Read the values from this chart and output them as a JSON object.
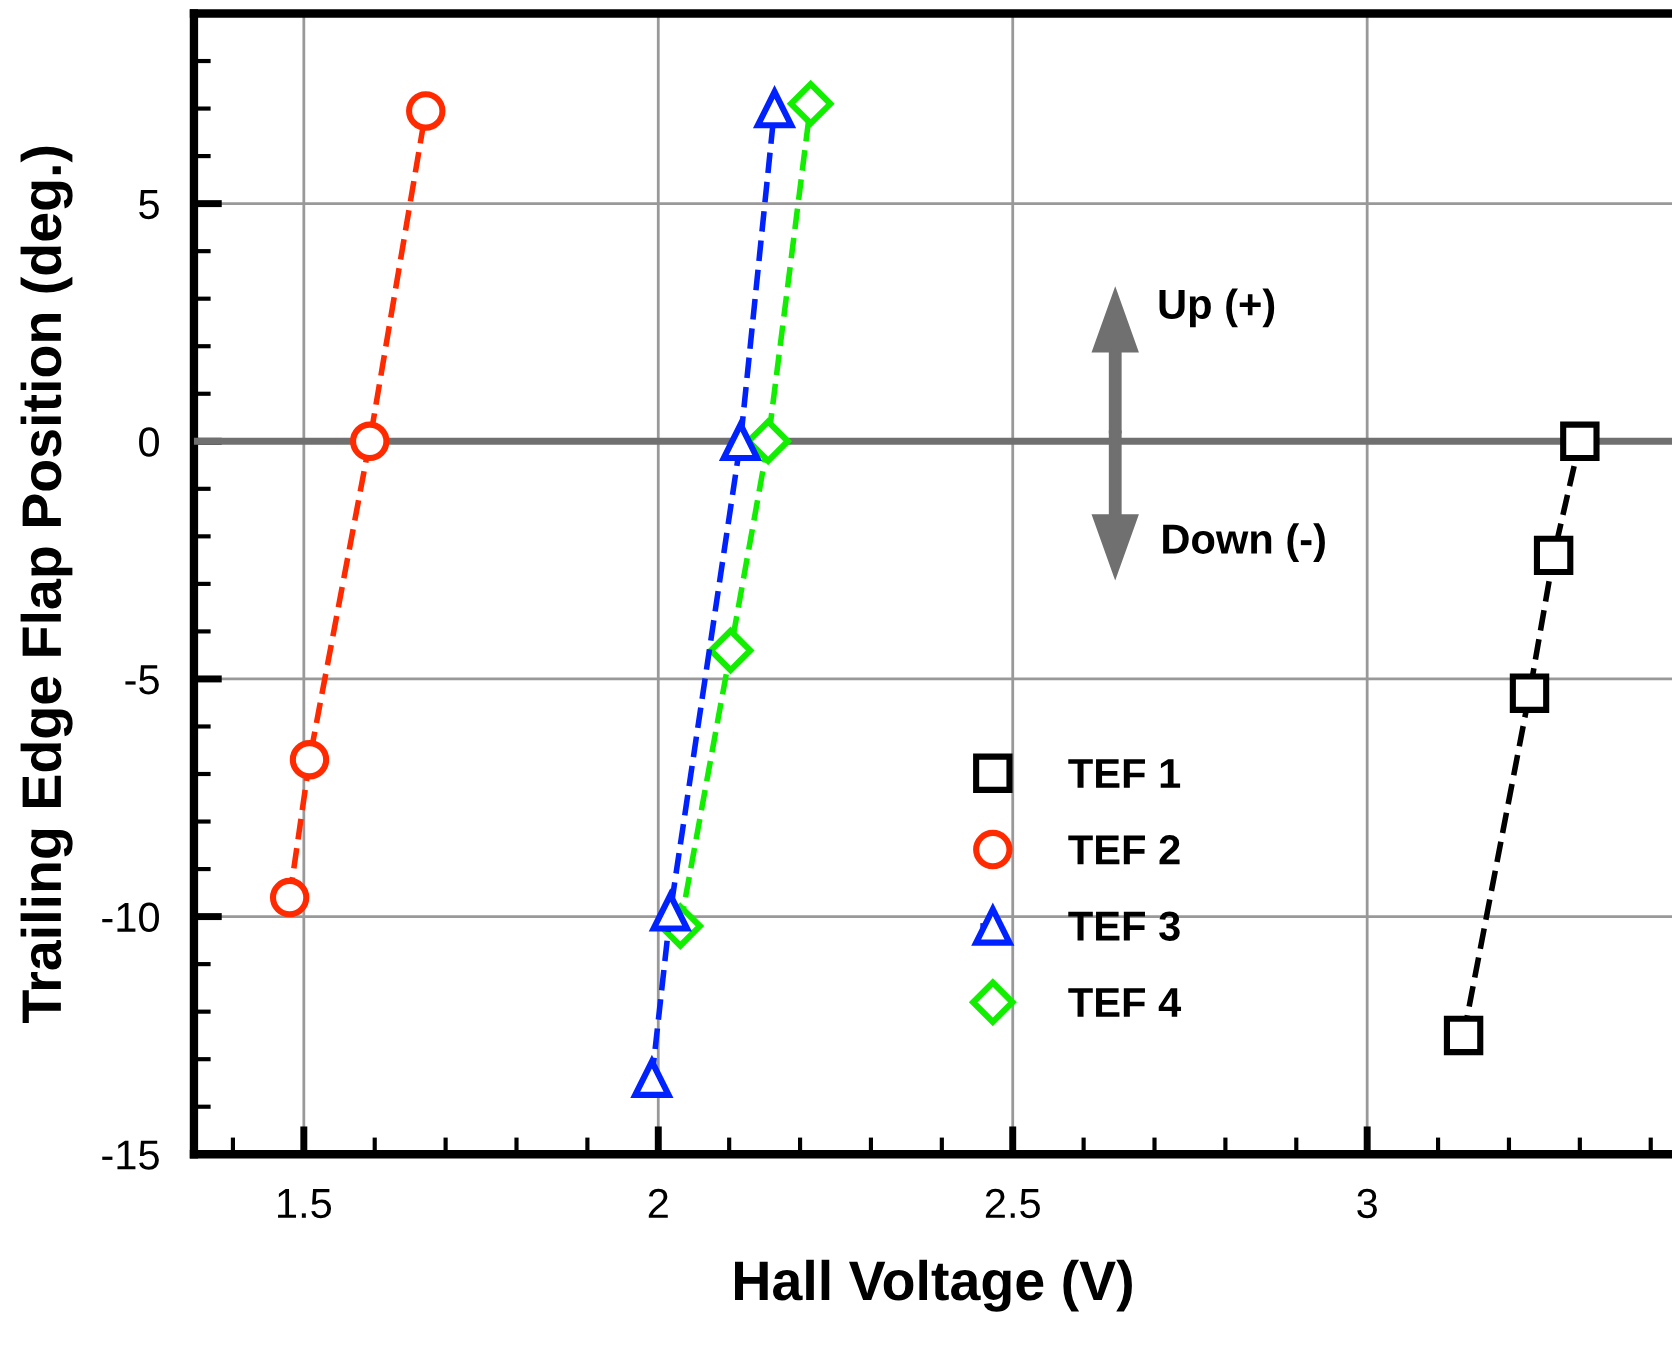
{
  "chart_data": {
    "type": "line",
    "xlabel": "Hall Voltage (V)",
    "ylabel": "Trailing Edge Flap Position (deg.)",
    "xlim": [
      1.345,
      3.43
    ],
    "ylim": [
      -15,
      9
    ],
    "xticks": [
      1.5,
      2,
      2.5,
      3
    ],
    "yticks": [
      -15,
      -10,
      -5,
      0,
      5
    ],
    "grid": true,
    "legend": "bottom",
    "line_style": "dashed",
    "ref_lines": [
      {
        "axis": "y",
        "value": 0,
        "color": "#707070"
      }
    ],
    "annotations": [
      "Up (+)",
      "Down (-)"
    ],
    "series": [
      {
        "name": "TEF 1",
        "color": "#000000",
        "marker": "square",
        "x": [
          3.136,
          3.229,
          3.263,
          3.3
        ],
        "values": [
          -12.5,
          -5.3,
          -2.4,
          0
        ]
      },
      {
        "name": "TEF 2",
        "color": "#ff2a00",
        "marker": "circle",
        "x": [
          1.48,
          1.508,
          1.593,
          1.672
        ],
        "values": [
          -9.6,
          -6.7,
          0,
          6.95
        ]
      },
      {
        "name": "TEF 3",
        "color": "#0022ff",
        "marker": "triangle",
        "x": [
          1.991,
          2.017,
          2.116,
          2.164
        ],
        "values": [
          -13.4,
          -9.9,
          0,
          7.0
        ]
      },
      {
        "name": "TEF 4",
        "color": "#11ee00",
        "marker": "diamond",
        "x": [
          2.031,
          2.102,
          2.155,
          2.215
        ],
        "values": [
          -10.2,
          -4.4,
          0,
          7.1
        ]
      }
    ]
  }
}
